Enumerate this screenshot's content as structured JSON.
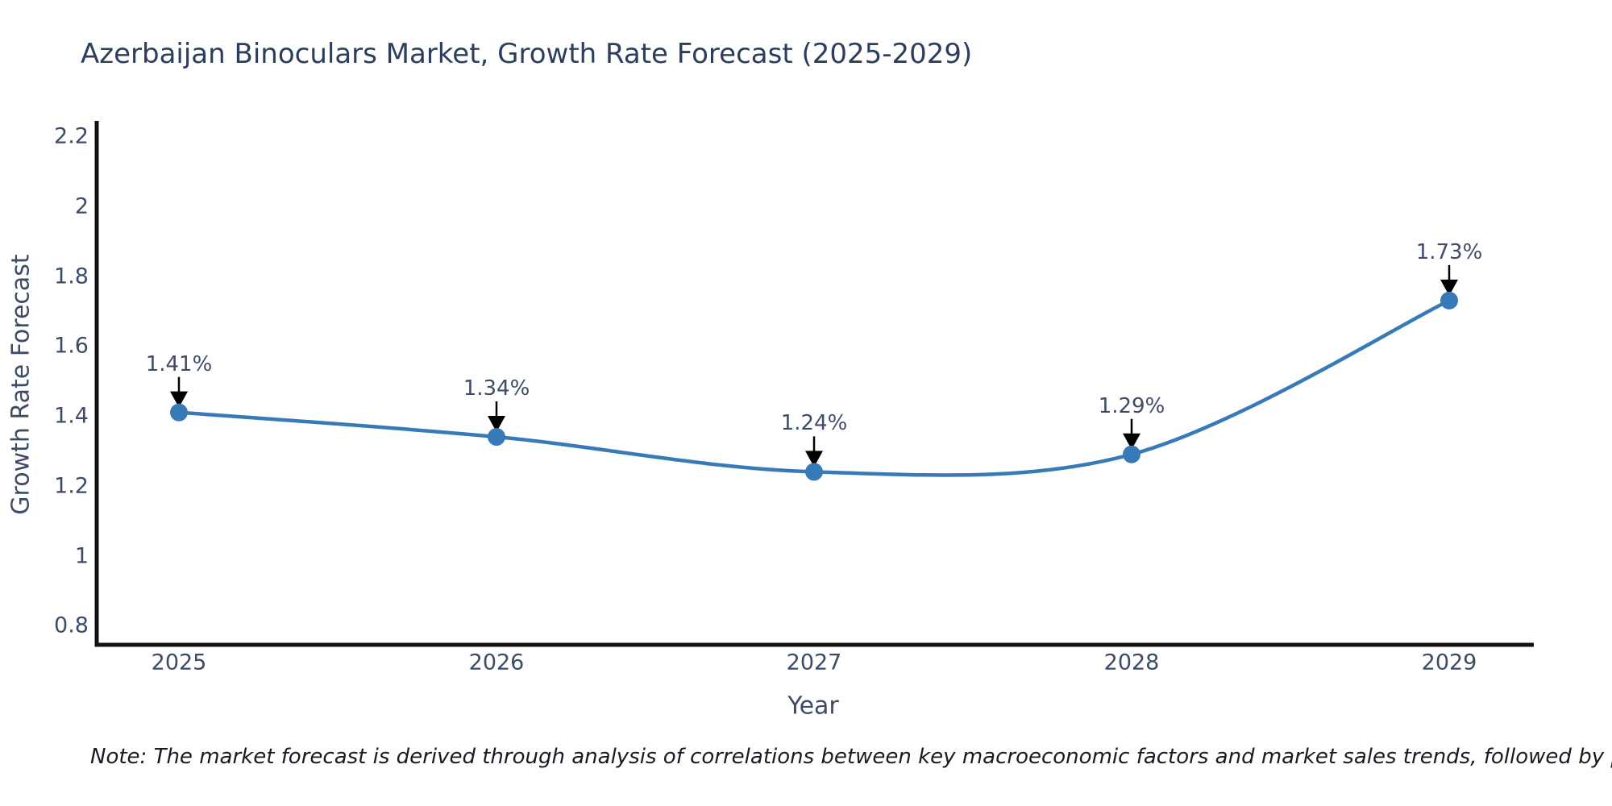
{
  "title": "Azerbaijan Binoculars Market, Growth Rate Forecast (2025-2029)",
  "note": "Note: The market forecast is derived through analysis of correlations between key macroeconomic factors and market sales trends, followed by predictive modeling to project future sales",
  "chart_data": {
    "type": "line",
    "title": "Azerbaijan Binoculars Market, Growth Rate Forecast (2025-2029)",
    "xlabel": "Year",
    "ylabel": "Growth Rate Forecast",
    "x": [
      2025,
      2026,
      2027,
      2028,
      2029
    ],
    "values": [
      1.41,
      1.34,
      1.24,
      1.29,
      1.73
    ],
    "point_labels": [
      "1.41%",
      "1.34%",
      "1.24%",
      "1.29%",
      "1.73%"
    ],
    "xticks": [
      "2025",
      "2026",
      "2027",
      "2028",
      "2029"
    ],
    "yticks": [
      "2.2",
      "2",
      "1.8",
      "1.6",
      "1.4",
      "1.2",
      "1",
      "0.8"
    ],
    "ytick_values": [
      2.2,
      2.0,
      1.8,
      1.6,
      1.4,
      1.2,
      1.0,
      0.8
    ],
    "ylim": [
      0.72,
      2.26
    ],
    "grid": false,
    "legend": "none",
    "line_shape": "spline",
    "annotations": "value labels with black arrows pointing down to each marker",
    "colors": {
      "line": "#3879b8",
      "marker": "#3879b8",
      "axis": "#111111",
      "tick_text": "#3d4c66",
      "title_text": "#2c3e5d",
      "note_text": "#181b22",
      "arrow": "#000000",
      "background": "#ffffff"
    }
  }
}
